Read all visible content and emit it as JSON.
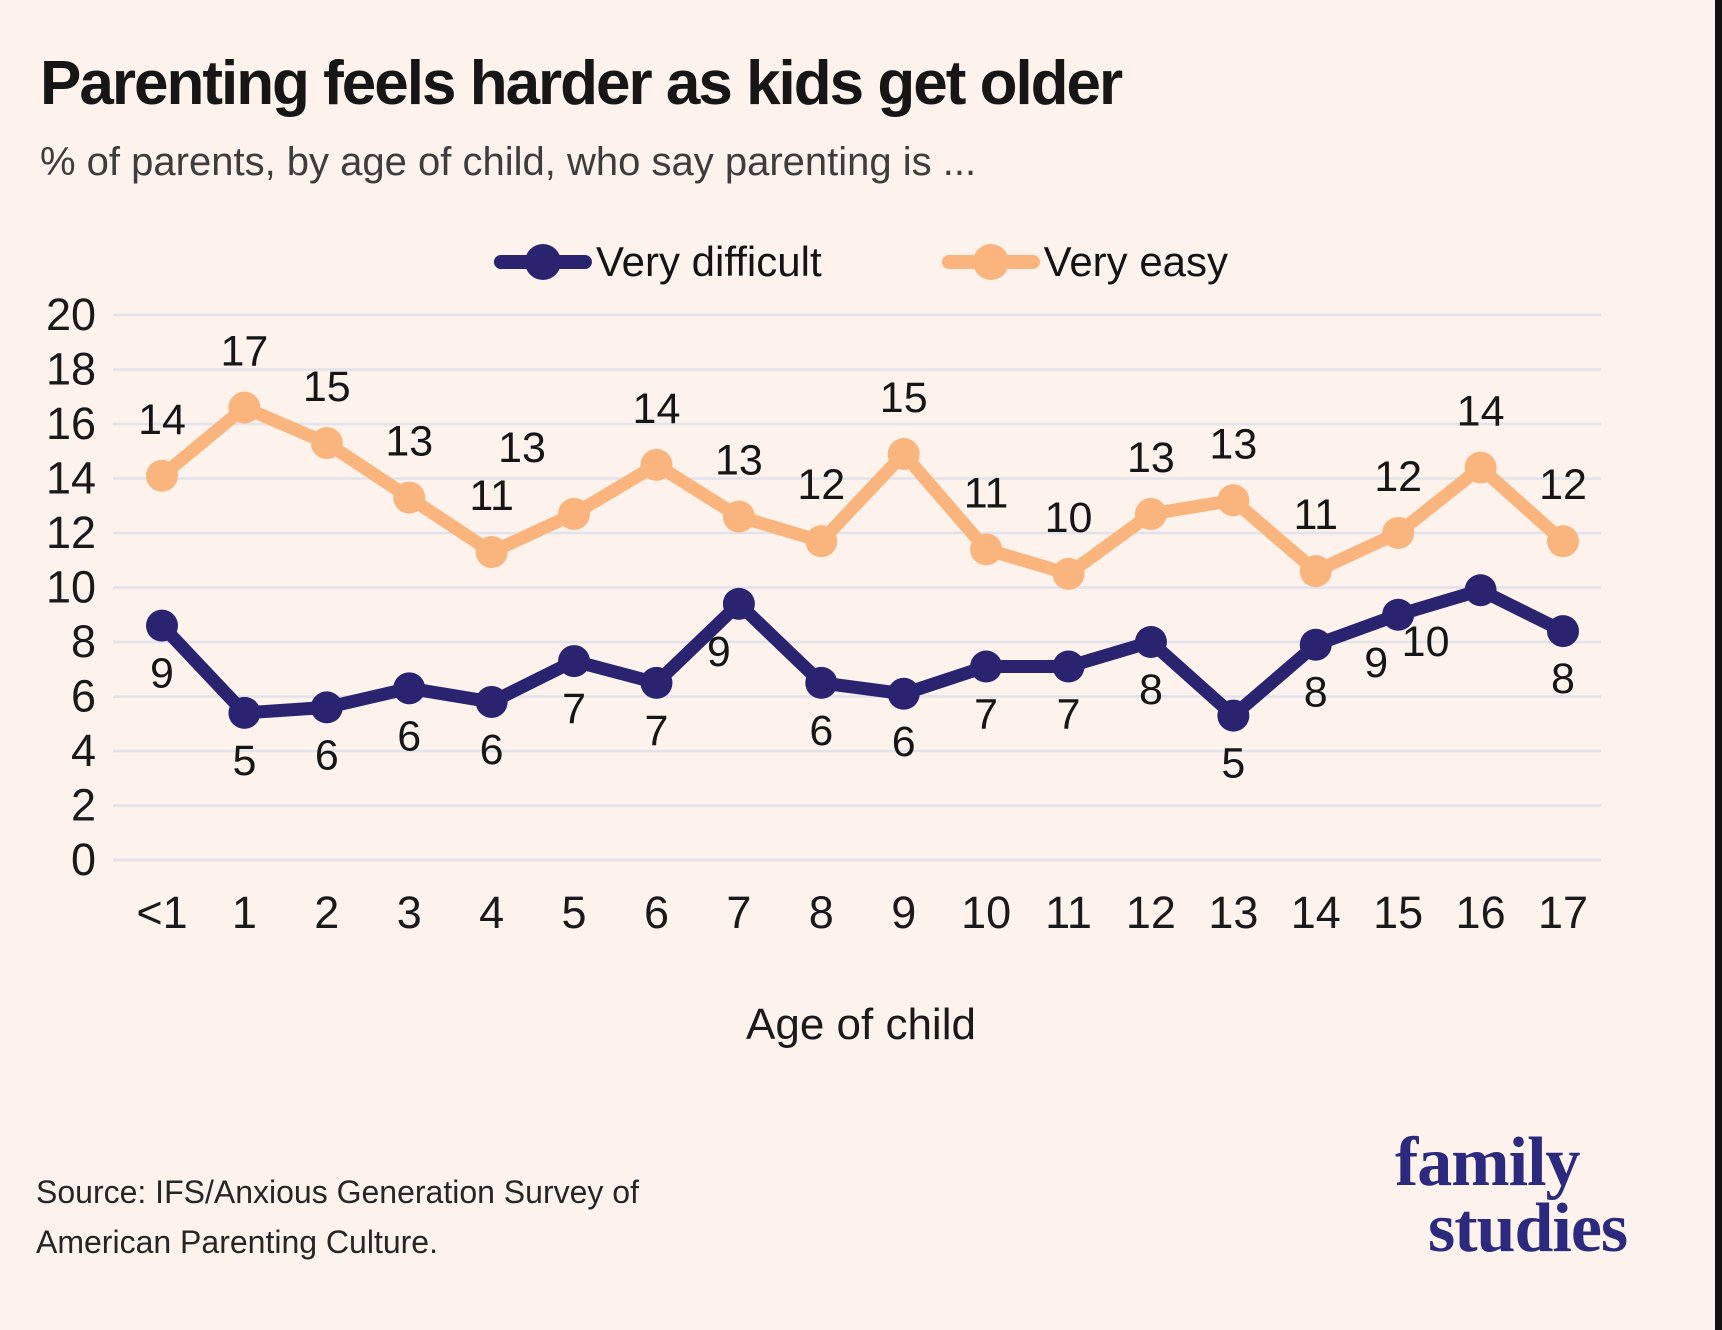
{
  "header": {
    "title": "Parenting feels harder as kids get older",
    "subtitle": "% of parents, by age of child, who say parenting is ..."
  },
  "chart_data": {
    "type": "line",
    "categories": [
      "<1",
      "1",
      "2",
      "3",
      "4",
      "5",
      "6",
      "7",
      "8",
      "9",
      "10",
      "11",
      "12",
      "13",
      "14",
      "15",
      "16",
      "17"
    ],
    "series": [
      {
        "name": "Very difficult",
        "color": "#292370",
        "values": [
          9,
          5,
          6,
          6,
          6,
          7,
          7,
          9,
          6,
          6,
          7,
          7,
          8,
          5,
          8,
          9,
          10,
          8
        ],
        "values_precise": [
          8.6,
          5.4,
          5.6,
          6.3,
          5.8,
          7.3,
          6.5,
          9.4,
          6.5,
          6.1,
          7.1,
          7.1,
          8.0,
          5.3,
          7.9,
          9.0,
          9.9,
          8.4
        ]
      },
      {
        "name": "Very easy",
        "color": "#f9b57d",
        "values": [
          14,
          17,
          15,
          13,
          11,
          13,
          14,
          13,
          12,
          15,
          11,
          10,
          13,
          13,
          11,
          12,
          14,
          12
        ],
        "values_precise": [
          14.1,
          16.6,
          15.3,
          13.3,
          11.3,
          12.7,
          14.5,
          12.6,
          11.7,
          14.9,
          11.4,
          10.5,
          12.7,
          13.2,
          10.6,
          12.0,
          14.4,
          11.7
        ]
      }
    ],
    "xlabel": "Age of child",
    "ylabel": "",
    "ylim": [
      0,
      20
    ],
    "yticks": [
      0,
      2,
      4,
      6,
      8,
      10,
      12,
      14,
      16,
      18,
      20
    ],
    "grid": "horizontal",
    "legend_position": "top",
    "label_offsets": {
      "Very difficult": {
        "default": {
          "dx": 0,
          "dy": 62
        },
        "overrides": {
          "7": {
            "dx": -20,
            "dy": 62
          },
          "15": {
            "dx": -22,
            "dy": 62
          },
          "16": {
            "dx": -55,
            "dy": 66
          }
        }
      },
      "Very easy": {
        "default": {
          "dx": 0,
          "dy": -42
        },
        "overrides": {
          "5": {
            "dx": -52,
            "dy": -52
          }
        }
      }
    }
  },
  "footer": {
    "source_line1": "Source: IFS/Anxious Generation Survey of",
    "source_line2": "American Parenting Culture.",
    "logo_line1": "family",
    "logo_line2": "studies"
  },
  "style": {
    "background": "#fdf3ec",
    "gridline_color": "#e2e2ec",
    "tick_label_color": "#1a1a1a",
    "data_label_color": "#161616",
    "edge_strip_color": "#121212"
  }
}
